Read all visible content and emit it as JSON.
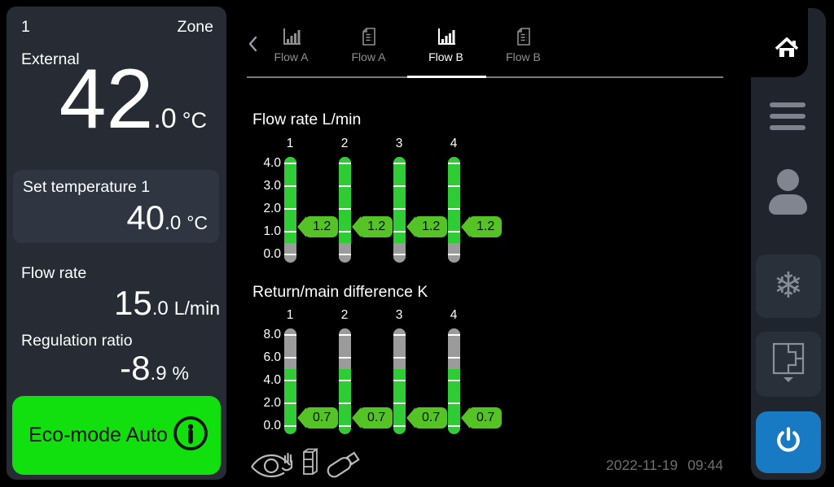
{
  "left_panel": {
    "zone_number": "1",
    "zone_label": "Zone",
    "external_label": "External",
    "external": {
      "int": "42",
      "dec": ".0",
      "unit": "°C"
    },
    "set_temp": {
      "label": "Set temperature 1",
      "int": "40",
      "dec": ".0",
      "unit": "°C"
    },
    "flow_rate": {
      "label": "Flow rate",
      "int": "15",
      "dec": ".0",
      "unit": "L/min"
    },
    "regulation_ratio": {
      "label": "Regulation ratio",
      "int": "-8",
      "dec": ".9",
      "unit": "%"
    },
    "eco_button": {
      "label": "Eco-mode Auto",
      "icon": "info-icon"
    }
  },
  "tabs": [
    {
      "label": "Flow A",
      "icon": "bar-chart-icon",
      "active": false
    },
    {
      "label": "Flow A",
      "icon": "document-icon",
      "active": false
    },
    {
      "label": "Flow B",
      "icon": "bar-chart-icon",
      "active": true
    },
    {
      "label": "Flow B",
      "icon": "document-icon",
      "active": false
    }
  ],
  "chart_data": [
    {
      "type": "bar",
      "title": "Flow rate L/min",
      "categories": [
        "1",
        "2",
        "3",
        "4"
      ],
      "values": [
        1.2,
        1.2,
        1.2,
        1.2
      ],
      "value_labels": [
        "1.2",
        "1.2",
        "1.2",
        "1.2"
      ],
      "ylim": [
        0.0,
        4.0
      ],
      "yticks": [
        4.0,
        3.0,
        2.0,
        1.0,
        0.0
      ],
      "tick_step": 1.0,
      "gray_zone": {
        "from": 0.0,
        "to": 0.5,
        "side": "bottom"
      },
      "legend": "none",
      "grid": "ticks-on-bars"
    },
    {
      "type": "bar",
      "title": "Return/main difference K",
      "categories": [
        "1",
        "2",
        "3",
        "4"
      ],
      "values": [
        0.7,
        0.7,
        0.7,
        0.7
      ],
      "value_labels": [
        "0.7",
        "0.7",
        "0.7",
        "0.7"
      ],
      "ylim": [
        0.0,
        8.0
      ],
      "yticks": [
        8.0,
        6.0,
        4.0,
        2.0,
        0.0
      ],
      "tick_step": 2.0,
      "gray_zone": {
        "from": 5.0,
        "to": 8.5,
        "side": "top"
      },
      "legend": "none",
      "grid": "ticks-on-bars"
    }
  ],
  "footer": {
    "status_icons": [
      "supervision-eye-hand-icon",
      "module-icon",
      "usb-icon"
    ],
    "date": "2022-11-19",
    "time": "09:44"
  },
  "sidebar": {
    "buttons": [
      "home",
      "menu",
      "user",
      "defrost",
      "floor-plan",
      "power"
    ]
  },
  "colors": {
    "eco_green": "#11e00e",
    "bar_green": "#2fcc35",
    "bar_gray": "#9b9b9b",
    "tag_green": "#55c226",
    "power_blue": "#177ac2",
    "panel_bg": "#262b34",
    "panel_box_bg": "#2f3541",
    "rail_bg": "#20252d",
    "rail_button_bg": "#2a303a"
  }
}
